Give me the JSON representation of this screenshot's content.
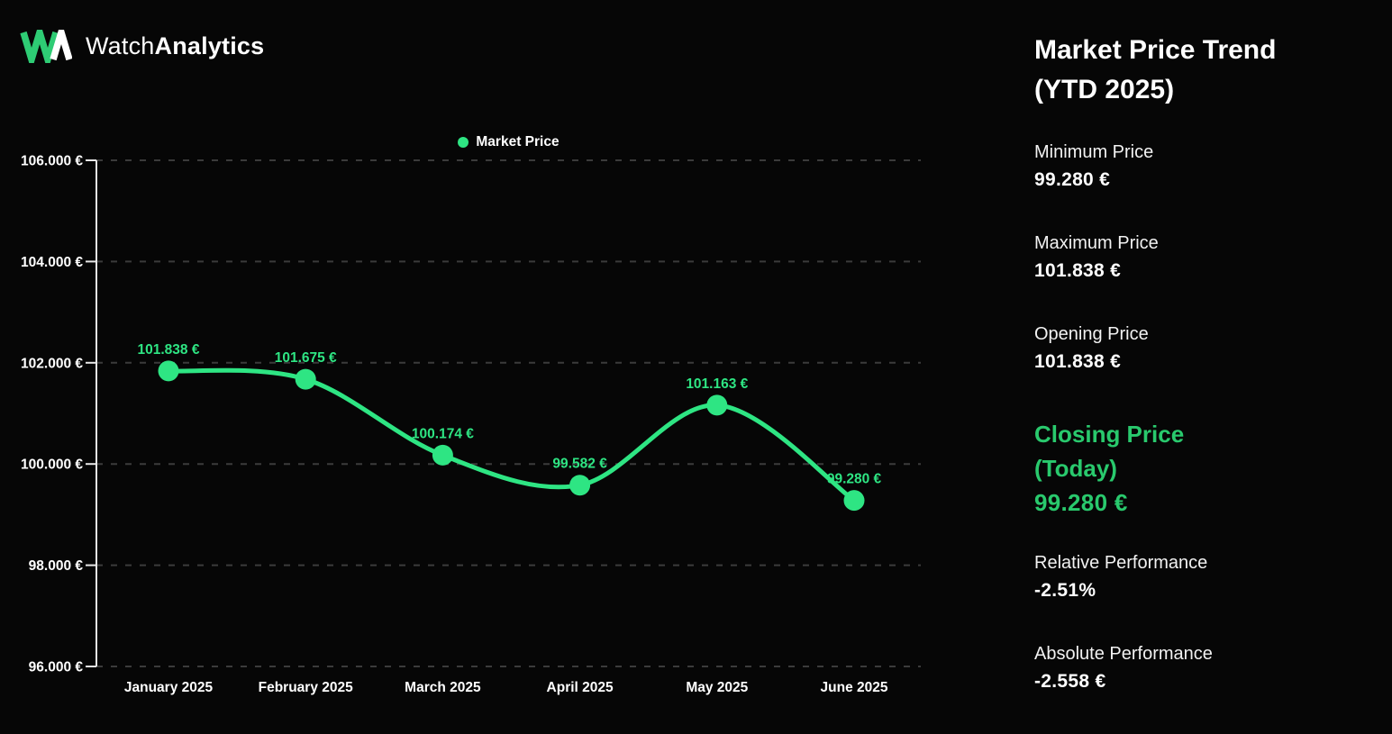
{
  "brand": {
    "name_regular": "Watch",
    "name_bold": "Analytics"
  },
  "panel": {
    "title": "Market Price Trend (YTD 2025)",
    "stats": [
      {
        "label": "Minimum Price",
        "value": "99.280 €"
      },
      {
        "label": "Maximum Price",
        "value": "101.838 €"
      },
      {
        "label": "Opening Price",
        "value": "101.838 €"
      },
      {
        "label": "Closing Price (Today)",
        "value": "99.280 €"
      },
      {
        "label": "Relative Performance",
        "value": "-2.51%"
      },
      {
        "label": "Absolute Performance",
        "value": "-2.558 €"
      }
    ]
  },
  "chart_data": {
    "type": "line",
    "title": "",
    "legend": [
      {
        "label": "Market Price",
        "color": "#2ee583"
      }
    ],
    "legend_position": "top-center",
    "categories": [
      "January 2025",
      "February 2025",
      "March 2025",
      "April 2025",
      "May 2025",
      "June 2025"
    ],
    "series": [
      {
        "name": "Market Price",
        "values": [
          101838,
          101675,
          100174,
          99582,
          101163,
          99280
        ],
        "point_labels": [
          "101.838 €",
          "101.675 €",
          "100.174 €",
          "99.582 €",
          "101.163 €",
          "99.280 €"
        ],
        "color": "#2ee583"
      }
    ],
    "y_axis": {
      "min": 96000,
      "max": 106000,
      "tick_step": 2000,
      "ticks": [
        {
          "value": 96000,
          "label": "96.000 €"
        },
        {
          "value": 98000,
          "label": "98.000 €"
        },
        {
          "value": 100000,
          "label": "100.000 €"
        },
        {
          "value": 102000,
          "label": "102.000 €"
        },
        {
          "value": 104000,
          "label": "104.000 €"
        },
        {
          "value": 106000,
          "label": "106.000 €"
        }
      ]
    },
    "grid": "dashed-horizontal",
    "colors": {
      "line": "#2ee583",
      "point": "#2ee583",
      "point_label": "#2ee583",
      "grid": "#3b3b3b",
      "axis": "#e8e8e8",
      "tick_text": "#ffffff",
      "background": "#060606",
      "highlight": "#29c96d",
      "logo_green": "#2ecc74",
      "logo_white": "#ffffff"
    }
  }
}
